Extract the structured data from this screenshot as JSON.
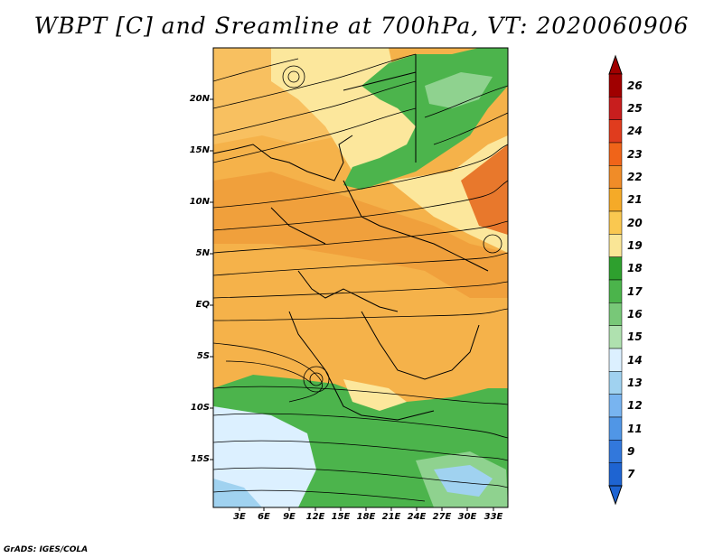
{
  "title": "WBPT [C] and Sreamline at 700hPa, VT: 2020060906",
  "footer": "GrADS: IGES/COLA",
  "y_labels": [
    "20N",
    "15N",
    "10N",
    "5N",
    "EQ",
    "5S",
    "10S",
    "15S"
  ],
  "x_labels": [
    "3E",
    "6E",
    "9E",
    "12E",
    "15E",
    "18E",
    "21E",
    "24E",
    "27E",
    "30E",
    "33E"
  ],
  "colorbar": {
    "labels": [
      "26",
      "25",
      "24",
      "23",
      "22",
      "21",
      "20",
      "19",
      "18",
      "17",
      "16",
      "15",
      "14",
      "13",
      "12",
      "11",
      "9",
      "7"
    ],
    "colors": [
      "#a00000",
      "#c81e1e",
      "#e03c1e",
      "#f06419",
      "#f08c28",
      "#f5aa28",
      "#fac850",
      "#fae696",
      "#2ea02e",
      "#4bb44b",
      "#78c878",
      "#afe1af",
      "#dcf0ff",
      "#a0d2f0",
      "#78b4f0",
      "#5096e6",
      "#3278dc",
      "#1e64d2"
    ]
  },
  "field_colors": {
    "orange": "#f0a03c",
    "light_orange": "#f8c060",
    "yellow": "#fce79c",
    "green": "#4cb44c",
    "light_green": "#8fd28f",
    "pale_blue": "#dcf0ff",
    "blue": "#a0d2f0",
    "red_orange": "#e8782c"
  }
}
